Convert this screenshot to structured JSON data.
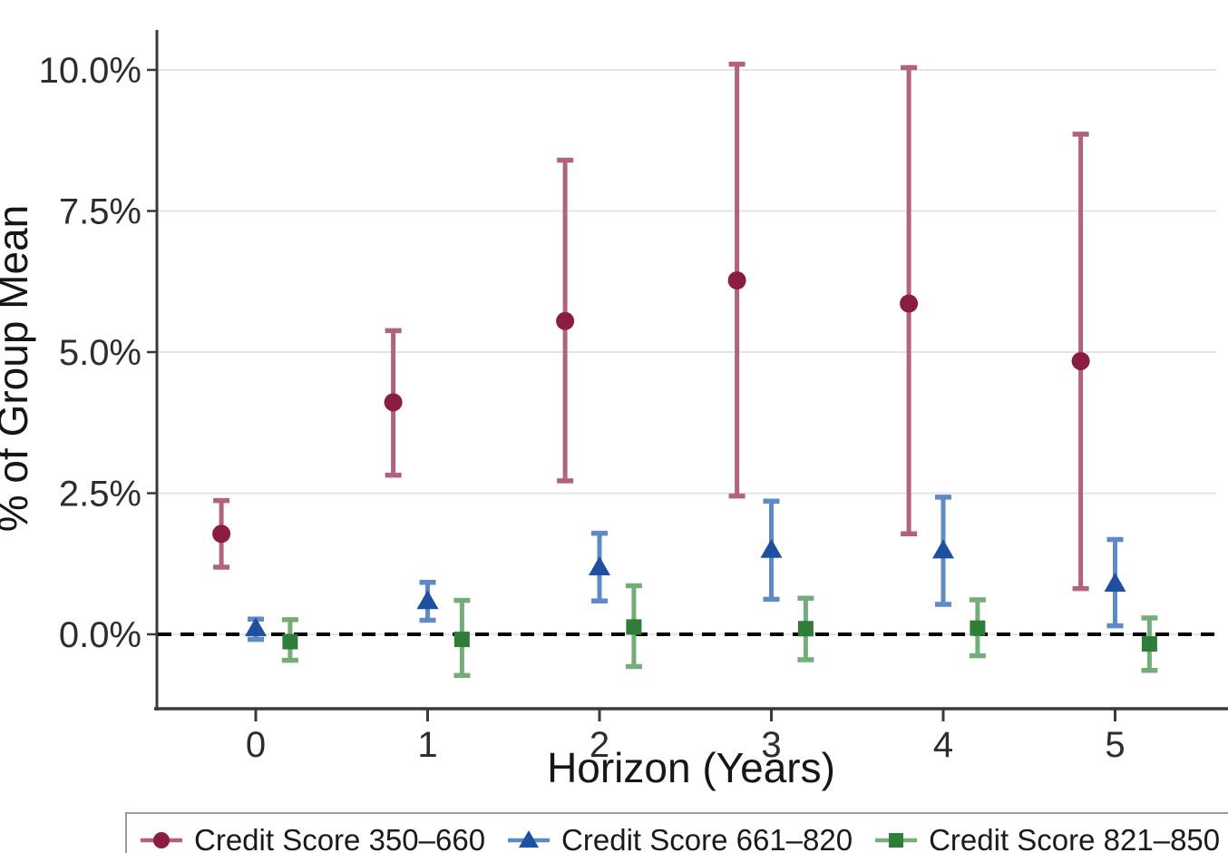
{
  "chart_data": {
    "type": "scatter",
    "subtype": "point-estimates-with-error-bars",
    "title": "",
    "xlabel": "Horizon (Years)",
    "ylabel": "% of Group Mean",
    "units": "percent",
    "x_tick_labels": [
      "0",
      "1",
      "2",
      "3",
      "4",
      "5"
    ],
    "x_tick_values": [
      0,
      1,
      2,
      3,
      4,
      5
    ],
    "y_tick_labels": [
      "10.0%",
      "7.5%",
      "5.0%",
      "2.5%",
      "0.0%"
    ],
    "y_tick_values": [
      10.0,
      7.5,
      5.0,
      2.5,
      0.0
    ],
    "xlim": [
      -0.55,
      5.65
    ],
    "ylim": [
      -1.3,
      10.7
    ],
    "grid": true,
    "zero_reference_line": {
      "y": 0,
      "style": "dashed",
      "color": "#000000"
    },
    "legend_position": "bottom",
    "series": [
      {
        "name": "Credit Score 350–660",
        "marker": "circle",
        "marker_color": "#8b1d41",
        "ci_color": "#b06280",
        "x_offset": -0.2,
        "points": [
          {
            "x": 0,
            "y": 1.78,
            "ci_low": 1.19,
            "ci_high": 2.37
          },
          {
            "x": 1,
            "y": 4.11,
            "ci_low": 2.82,
            "ci_high": 5.38
          },
          {
            "x": 2,
            "y": 5.55,
            "ci_low": 2.72,
            "ci_high": 8.4
          },
          {
            "x": 3,
            "y": 6.27,
            "ci_low": 2.45,
            "ci_high": 10.1
          },
          {
            "x": 4,
            "y": 5.86,
            "ci_low": 1.78,
            "ci_high": 10.04
          },
          {
            "x": 5,
            "y": 4.84,
            "ci_low": 0.81,
            "ci_high": 8.86
          }
        ]
      },
      {
        "name": "Credit Score 661–820",
        "marker": "triangle",
        "marker_color": "#1e4fa0",
        "ci_color": "#5f8ac8",
        "x_offset": 0,
        "points": [
          {
            "x": 0,
            "y": 0.11,
            "ci_low": -0.09,
            "ci_high": 0.27
          },
          {
            "x": 1,
            "y": 0.59,
            "ci_low": 0.25,
            "ci_high": 0.92
          },
          {
            "x": 2,
            "y": 1.19,
            "ci_low": 0.59,
            "ci_high": 1.79
          },
          {
            "x": 3,
            "y": 1.5,
            "ci_low": 0.62,
            "ci_high": 2.36
          },
          {
            "x": 4,
            "y": 1.49,
            "ci_low": 0.53,
            "ci_high": 2.43
          },
          {
            "x": 5,
            "y": 0.9,
            "ci_low": 0.15,
            "ci_high": 1.68
          }
        ]
      },
      {
        "name": "Credit Score 821–850",
        "marker": "square",
        "marker_color": "#2e7d38",
        "ci_color": "#74ad79",
        "x_offset": 0.2,
        "points": [
          {
            "x": 0,
            "y": -0.13,
            "ci_low": -0.46,
            "ci_high": 0.26
          },
          {
            "x": 1,
            "y": -0.09,
            "ci_low": -0.73,
            "ci_high": 0.6
          },
          {
            "x": 2,
            "y": 0.13,
            "ci_low": -0.57,
            "ci_high": 0.86
          },
          {
            "x": 3,
            "y": 0.1,
            "ci_low": -0.45,
            "ci_high": 0.64
          },
          {
            "x": 4,
            "y": 0.11,
            "ci_low": -0.38,
            "ci_high": 0.61
          },
          {
            "x": 5,
            "y": -0.17,
            "ci_low": -0.64,
            "ci_high": 0.29
          }
        ]
      }
    ]
  },
  "legend": {
    "items": [
      {
        "label": "Credit Score 350–660"
      },
      {
        "label": "Credit Score 661–820"
      },
      {
        "label": "Credit Score 821–850"
      }
    ]
  },
  "style": {
    "grid_color": "#e5e5e7",
    "axis_color": "#3a3a3a",
    "tick_text_color": "#2d2d2d",
    "title_text_color": "#161616",
    "zero_line_color": "#000000"
  }
}
